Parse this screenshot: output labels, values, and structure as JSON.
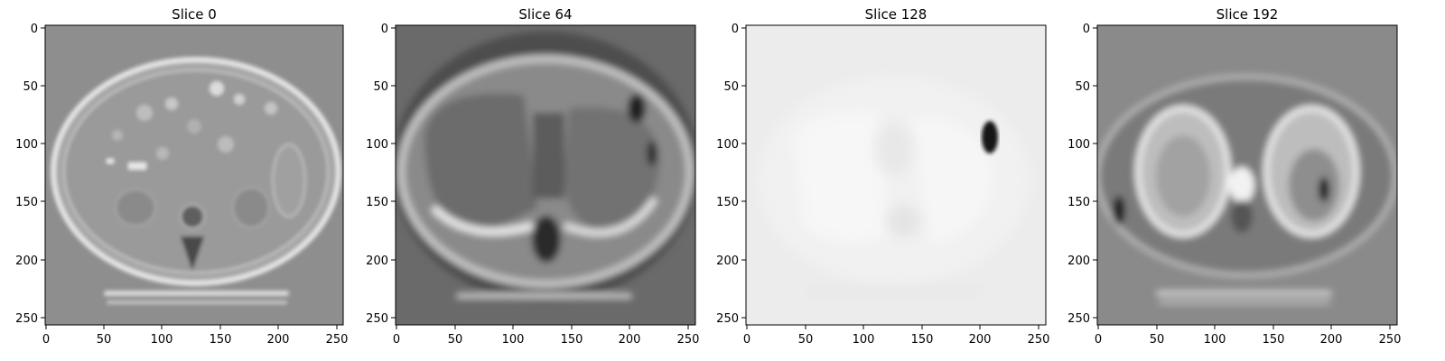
{
  "figure": {
    "panels": [
      {
        "title": "Slice 0",
        "tone": "abdomen",
        "xticks": [
          "0",
          "50",
          "100",
          "150",
          "200",
          "250"
        ],
        "yticks": [
          "0",
          "50",
          "100",
          "150",
          "200",
          "250"
        ]
      },
      {
        "title": "Slice 64",
        "tone": "liver-dark",
        "xticks": [
          "0",
          "50",
          "100",
          "150",
          "200",
          "250"
        ],
        "yticks": [
          "0",
          "50",
          "100",
          "150",
          "200",
          "250"
        ]
      },
      {
        "title": "Slice 128",
        "tone": "washed-out",
        "xticks": [
          "0",
          "50",
          "100",
          "150",
          "200",
          "250"
        ],
        "yticks": [
          "0",
          "50",
          "100",
          "150",
          "200",
          "250"
        ]
      },
      {
        "title": "Slice 192",
        "tone": "thorax",
        "xticks": [
          "0",
          "50",
          "100",
          "150",
          "200",
          "250"
        ],
        "yticks": [
          "0",
          "50",
          "100",
          "150",
          "200",
          "250"
        ]
      }
    ],
    "colors": {
      "frame": "#000000",
      "background": "#ffffff",
      "tick_text": "#000000"
    }
  }
}
